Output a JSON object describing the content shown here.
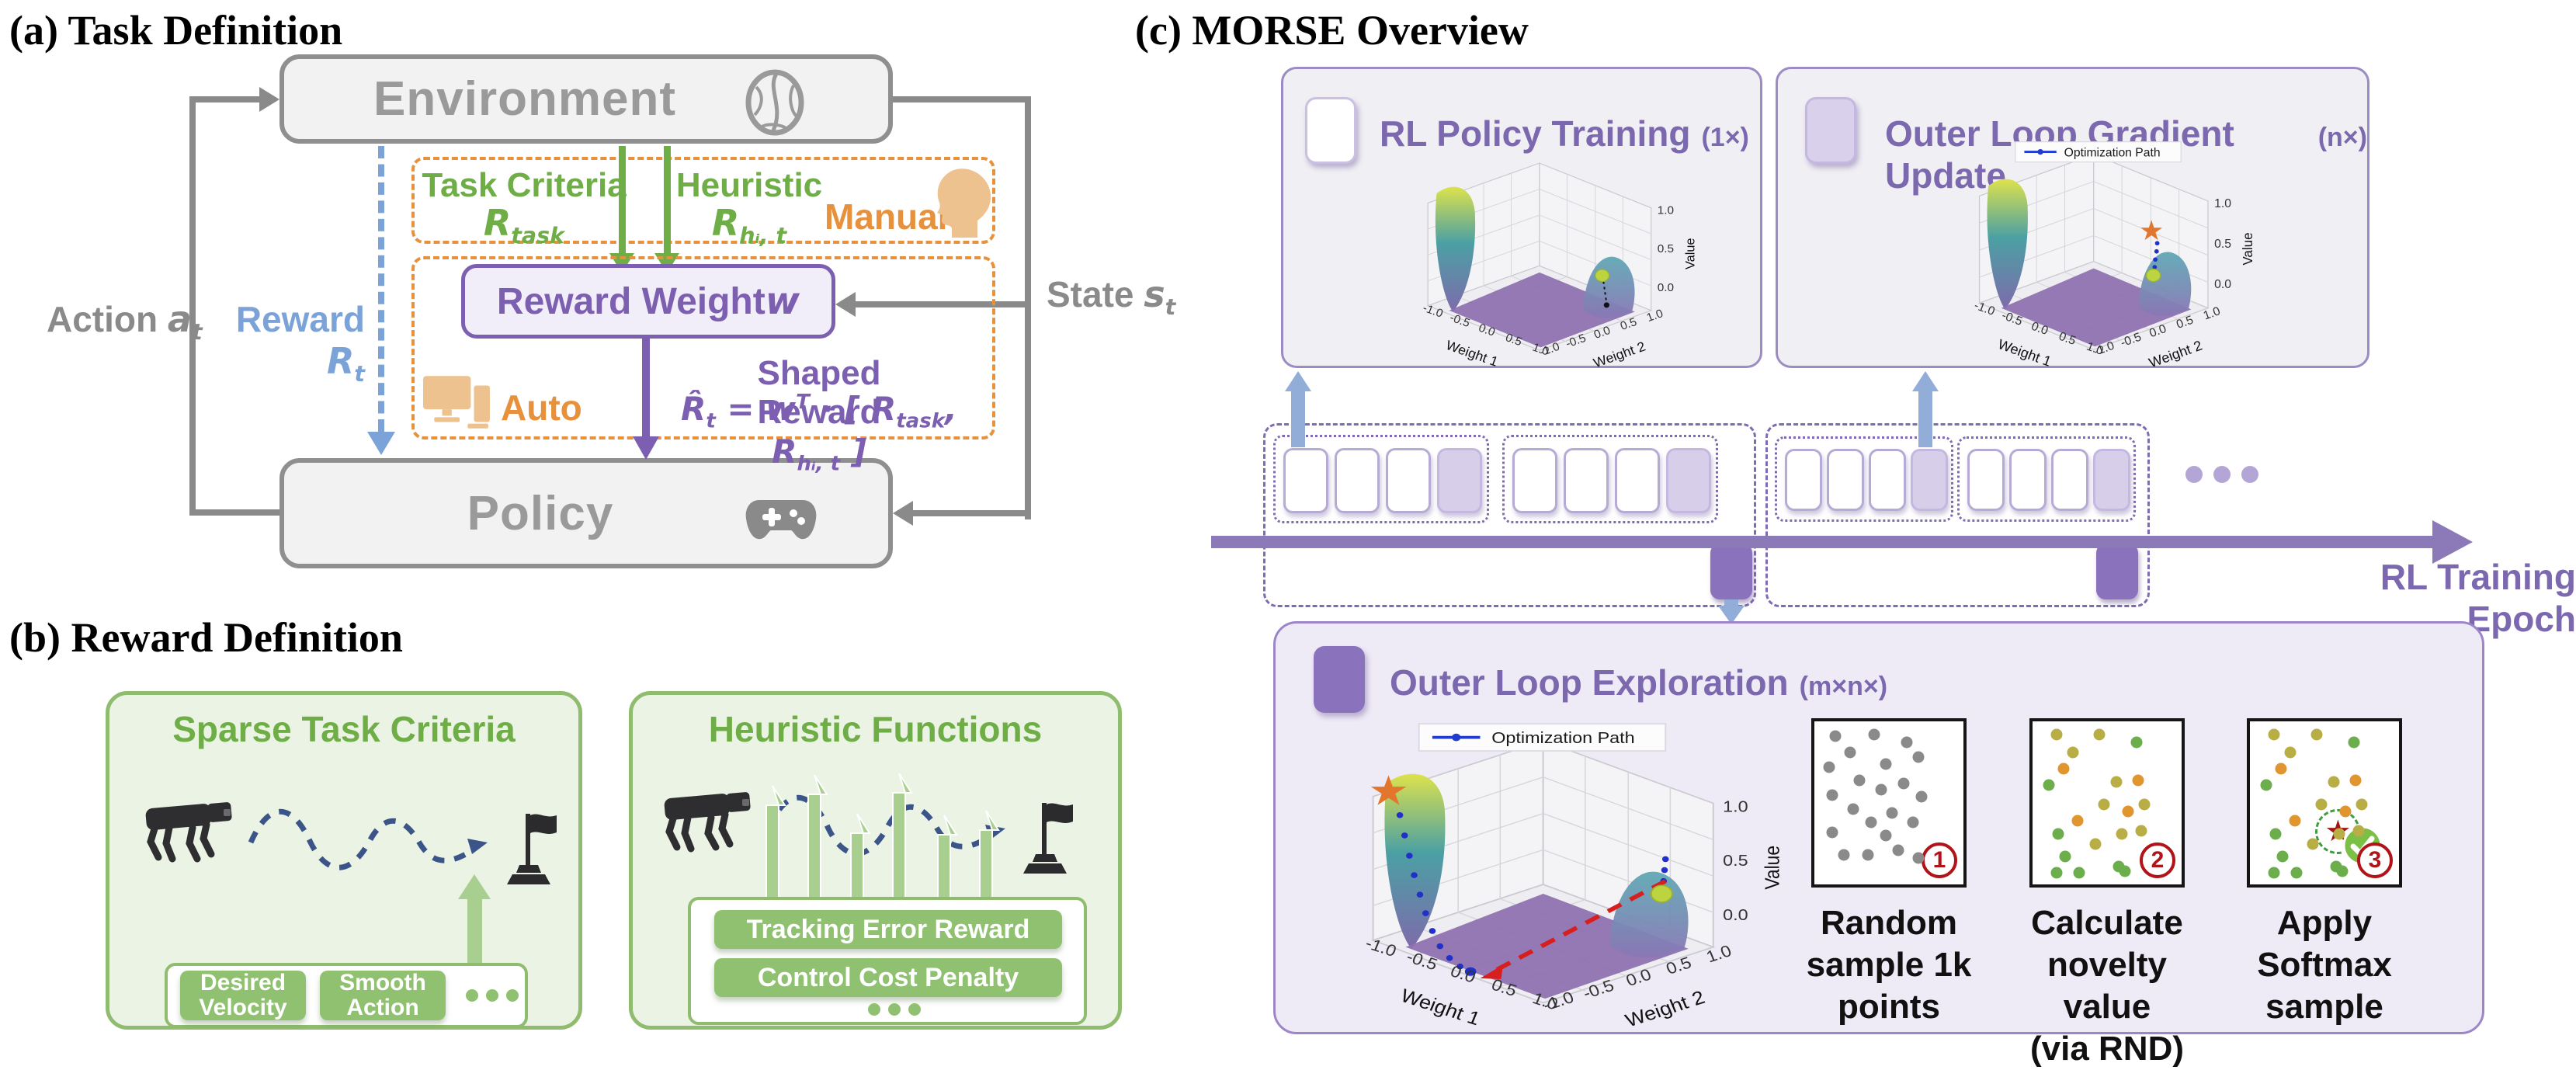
{
  "colors": {
    "gray": "#8a8a8a",
    "green": "#6fad47",
    "orange": "#e8913c",
    "blue": "#7ba3d8",
    "purple_dark": "#7c5fb0",
    "purple_c": "#7b68ae",
    "steel_arrow": "#92aed8",
    "epoch_dark": "#8b72bd",
    "epoch_light": "#d7cfe9",
    "red_badge": "#b11418",
    "dot_gray": "#8a8a8a",
    "dot_green": "#6cae4c",
    "dot_olive": "#b9ae45",
    "dot_orange": "#e0952f"
  },
  "panel_a": {
    "title": "(a) Task Definition",
    "environment": "Environment",
    "policy": "Policy",
    "action_word": "Action ",
    "action_base": "a",
    "action_sub": "t",
    "reward_word": "Reward ",
    "reward_base": "R",
    "reward_sub": "t",
    "state_word": "State ",
    "state_base": "s",
    "state_sub": "t",
    "task_criteria": "Task Criteria",
    "tc_base": "R",
    "tc_sub": "task",
    "heuristic": "Heuristic",
    "h_base": "R",
    "h_sub": "hᵢ, t",
    "manual": "Manual",
    "auto": "Auto",
    "reward_weight_text": "Reward Weight ",
    "reward_weight_math": "w",
    "shaped_reward": "Shaped Reward",
    "formula": {
      "f1": "R̂",
      "f1sub": "t",
      "f2": " = w",
      "f2sup": "T",
      "f3": " · [ R",
      "f3sub": "task",
      "f4": ", R",
      "f4sub": "hᵢ, t",
      "f5": " ]"
    }
  },
  "panel_b": {
    "title": "(b) Reward Definition",
    "sparse_title": "Sparse Task Criteria",
    "sparse_btn1": "Desired Velocity",
    "sparse_btn2": "Smooth Action",
    "heur_title": "Heuristic Functions",
    "heur_btn1": "Tracking Error Reward",
    "heur_btn2": "Control Cost Penalty"
  },
  "panel_c": {
    "title": "(c) MORSE Overview",
    "rl_title": "RL Policy Training",
    "rl_mult": "(1×)",
    "gu_title": "Outer Loop Gradient Update",
    "gu_mult": "(n×)",
    "exp_title": "Outer Loop Exploration",
    "exp_mult": "(m×n×)",
    "epoch_label": "RL Training Epoch",
    "steps": [
      {
        "num": "1",
        "cap1": "Random",
        "cap2": "sample 1k",
        "cap3": "points"
      },
      {
        "num": "2",
        "cap1": "Calculate",
        "cap2": "novelty value",
        "cap3": "(via RND)"
      },
      {
        "num": "3",
        "cap1": "Apply",
        "cap2": "Softmax",
        "cap3": "sample"
      }
    ],
    "scatter_gray": [
      [
        14,
        9
      ],
      [
        40,
        8
      ],
      [
        62,
        13
      ],
      [
        24,
        19
      ],
      [
        10,
        28
      ],
      [
        48,
        26
      ],
      [
        70,
        22
      ],
      [
        30,
        36
      ],
      [
        12,
        45
      ],
      [
        45,
        42
      ],
      [
        60,
        38
      ],
      [
        72,
        46
      ],
      [
        26,
        54
      ],
      [
        52,
        56
      ],
      [
        38,
        62
      ],
      [
        12,
        68
      ],
      [
        48,
        70
      ],
      [
        66,
        62
      ],
      [
        20,
        82
      ],
      [
        36,
        82
      ],
      [
        56,
        79
      ],
      [
        70,
        84
      ]
    ],
    "scatter_colored": [
      [
        16,
        8,
        "y"
      ],
      [
        45,
        8,
        "y"
      ],
      [
        70,
        13,
        "g"
      ],
      [
        27,
        19,
        "y"
      ],
      [
        21,
        29,
        "o"
      ],
      [
        11,
        39,
        "g"
      ],
      [
        56,
        37,
        "y"
      ],
      [
        71,
        36,
        "o"
      ],
      [
        48,
        51,
        "y"
      ],
      [
        64,
        55,
        "o"
      ],
      [
        75,
        51,
        "y"
      ],
      [
        30,
        61,
        "o"
      ],
      [
        17,
        69,
        "g"
      ],
      [
        60,
        69,
        "y"
      ],
      [
        73,
        67,
        "y"
      ],
      [
        42,
        75,
        "y"
      ],
      [
        22,
        83,
        "g"
      ],
      [
        58,
        89,
        "g"
      ],
      [
        16,
        93,
        "g"
      ],
      [
        31,
        93,
        "g"
      ],
      [
        62,
        92,
        "g"
      ]
    ],
    "dot_colors": {
      "default": "#8a8a8a",
      "g": "#6cae4c",
      "y": "#b9ae45",
      "o": "#e0952f"
    }
  },
  "plot": {
    "type": "3d-surface",
    "xlabel": "Weight 1",
    "ylabel": "Weight 2",
    "zlabel": "Value",
    "xticks": [
      "-1.0",
      "-0.5",
      "0.0",
      "0.5",
      "1.0"
    ],
    "yticks": [
      "-1.0",
      "-0.5",
      "0.0",
      "0.5",
      "1.0"
    ],
    "zticks": [
      "1.0",
      "0.5",
      "0.0"
    ],
    "xlim": [
      -1,
      1
    ],
    "ylim": [
      -1,
      1
    ],
    "zlim": [
      0,
      1
    ],
    "legend": "Optimization Path",
    "description": "Bimodal reward-weight value surface: tall yellow-green ridge at left, low hill at right, flat purple valley floor"
  }
}
